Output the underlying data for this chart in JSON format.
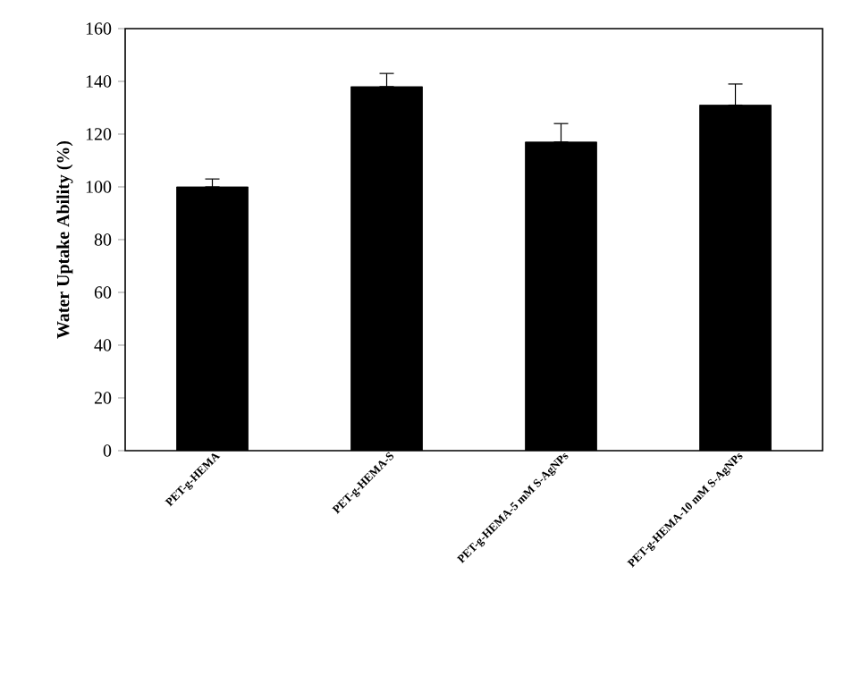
{
  "chart_data": {
    "type": "bar",
    "ylabel": "Water Uptake Ability (%)",
    "categories": [
      "PET-g-HEMA",
      "PET-g-HEMA-S",
      "PET-g-HEMA-5 mM S-AgNPs",
      "PET-g-HEMA-10 mM S-AgNPs"
    ],
    "values": [
      100,
      138,
      117,
      131
    ],
    "errors": [
      [
        100,
        103
      ],
      [
        138,
        143
      ],
      [
        117,
        124
      ],
      [
        131,
        139
      ]
    ],
    "color": "#000000",
    "ylim": [
      0,
      160
    ],
    "yticks": [
      0,
      20,
      40,
      60,
      80,
      100,
      120,
      140,
      160
    ]
  }
}
